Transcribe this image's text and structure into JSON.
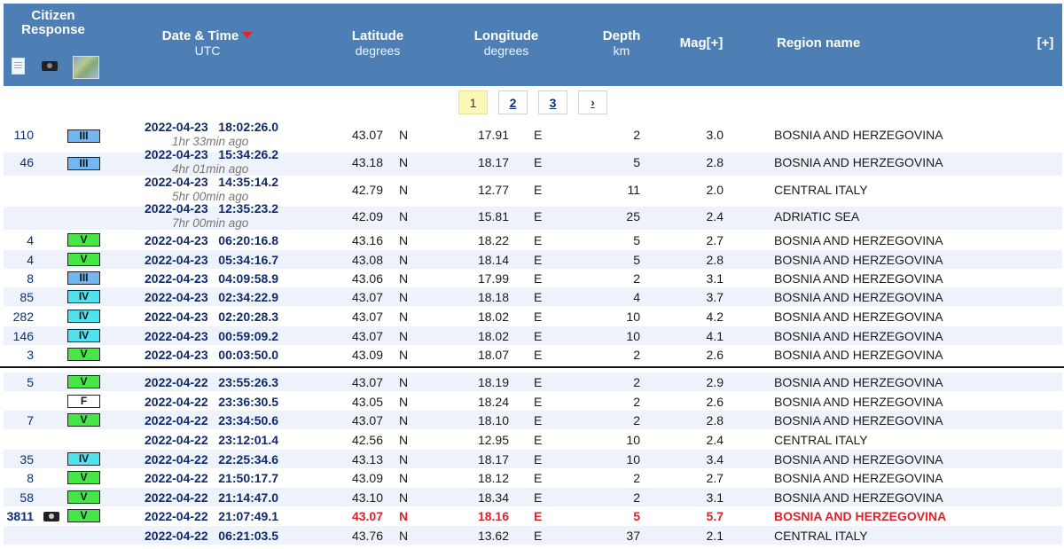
{
  "header": {
    "citizen_response": "Citizen Response",
    "datetime_label": "Date & Time",
    "datetime_unit": "UTC",
    "lat_label": "Latitude",
    "lat_unit": "degrees",
    "lon_label": "Longitude",
    "lon_unit": "degrees",
    "depth_label": "Depth",
    "depth_unit": "km",
    "mag_label": "Mag[+]",
    "region_label": "Region name",
    "expand_label": "[+]",
    "icons": [
      "document-icon",
      "camera-icon",
      "map-icon"
    ]
  },
  "pagination": {
    "pages": [
      "1",
      "2",
      "3"
    ],
    "current": "1",
    "next": "›"
  },
  "colors": {
    "header_bg": "#4e7fb4",
    "highlight": "#d9232d",
    "intensity_III": "#72b7ef",
    "intensity_IV": "#4fe3f0",
    "intensity_V": "#46e646"
  },
  "rows": [
    {
      "count": "110",
      "intensity": "III",
      "date": "2022-04-23",
      "time": "18:02:26.0",
      "ago": "1hr 33min ago",
      "lat": "43.07",
      "ns": "N",
      "lon": "17.91",
      "ew": "E",
      "depth": "2",
      "mag": "3.0",
      "region": "BOSNIA AND HERZEGOVINA"
    },
    {
      "count": "46",
      "intensity": "III",
      "date": "2022-04-23",
      "time": "15:34:26.2",
      "ago": "4hr 01min ago",
      "lat": "43.18",
      "ns": "N",
      "lon": "18.17",
      "ew": "E",
      "depth": "5",
      "mag": "2.8",
      "region": "BOSNIA AND HERZEGOVINA"
    },
    {
      "count": "",
      "intensity": "",
      "date": "2022-04-23",
      "time": "14:35:14.2",
      "ago": "5hr 00min ago",
      "lat": "42.79",
      "ns": "N",
      "lon": "12.77",
      "ew": "E",
      "depth": "11",
      "mag": "2.0",
      "region": "CENTRAL ITALY"
    },
    {
      "count": "",
      "intensity": "",
      "date": "2022-04-23",
      "time": "12:35:23.2",
      "ago": "7hr 00min ago",
      "lat": "42.09",
      "ns": "N",
      "lon": "15.81",
      "ew": "E",
      "depth": "25",
      "mag": "2.4",
      "region": "ADRIATIC SEA"
    },
    {
      "count": "4",
      "intensity": "V",
      "date": "2022-04-23",
      "time": "06:20:16.8",
      "ago": "",
      "lat": "43.16",
      "ns": "N",
      "lon": "18.22",
      "ew": "E",
      "depth": "5",
      "mag": "2.7",
      "region": "BOSNIA AND HERZEGOVINA"
    },
    {
      "count": "4",
      "intensity": "V",
      "date": "2022-04-23",
      "time": "05:34:16.7",
      "ago": "",
      "lat": "43.08",
      "ns": "N",
      "lon": "18.14",
      "ew": "E",
      "depth": "5",
      "mag": "2.8",
      "region": "BOSNIA AND HERZEGOVINA"
    },
    {
      "count": "8",
      "intensity": "III",
      "date": "2022-04-23",
      "time": "04:09:58.9",
      "ago": "",
      "lat": "43.06",
      "ns": "N",
      "lon": "17.99",
      "ew": "E",
      "depth": "2",
      "mag": "3.1",
      "region": "BOSNIA AND HERZEGOVINA"
    },
    {
      "count": "85",
      "intensity": "IV",
      "date": "2022-04-23",
      "time": "02:34:22.9",
      "ago": "",
      "lat": "43.07",
      "ns": "N",
      "lon": "18.18",
      "ew": "E",
      "depth": "4",
      "mag": "3.7",
      "region": "BOSNIA AND HERZEGOVINA"
    },
    {
      "count": "282",
      "intensity": "IV",
      "date": "2022-04-23",
      "time": "02:20:28.3",
      "ago": "",
      "lat": "43.07",
      "ns": "N",
      "lon": "18.02",
      "ew": "E",
      "depth": "10",
      "mag": "4.2",
      "region": "BOSNIA AND HERZEGOVINA"
    },
    {
      "count": "146",
      "intensity": "IV",
      "date": "2022-04-23",
      "time": "00:59:09.2",
      "ago": "",
      "lat": "43.07",
      "ns": "N",
      "lon": "18.02",
      "ew": "E",
      "depth": "10",
      "mag": "4.1",
      "region": "BOSNIA AND HERZEGOVINA"
    },
    {
      "count": "3",
      "intensity": "V",
      "date": "2022-04-23",
      "time": "00:03:50.0",
      "ago": "",
      "lat": "43.09",
      "ns": "N",
      "lon": "18.07",
      "ew": "E",
      "depth": "2",
      "mag": "2.6",
      "region": "BOSNIA AND HERZEGOVINA"
    },
    {
      "count": "5",
      "intensity": "V",
      "date": "2022-04-22",
      "time": "23:55:26.3",
      "ago": "",
      "lat": "43.07",
      "ns": "N",
      "lon": "18.19",
      "ew": "E",
      "depth": "2",
      "mag": "2.9",
      "region": "BOSNIA AND HERZEGOVINA"
    },
    {
      "count": "",
      "intensity": "F",
      "date": "2022-04-22",
      "time": "23:36:30.5",
      "ago": "",
      "lat": "43.05",
      "ns": "N",
      "lon": "18.24",
      "ew": "E",
      "depth": "2",
      "mag": "2.6",
      "region": "BOSNIA AND HERZEGOVINA"
    },
    {
      "count": "7",
      "intensity": "V",
      "date": "2022-04-22",
      "time": "23:34:50.6",
      "ago": "",
      "lat": "43.07",
      "ns": "N",
      "lon": "18.10",
      "ew": "E",
      "depth": "2",
      "mag": "2.8",
      "region": "BOSNIA AND HERZEGOVINA"
    },
    {
      "count": "",
      "intensity": "",
      "date": "2022-04-22",
      "time": "23:12:01.4",
      "ago": "",
      "lat": "42.56",
      "ns": "N",
      "lon": "12.95",
      "ew": "E",
      "depth": "10",
      "mag": "2.4",
      "region": "CENTRAL ITALY"
    },
    {
      "count": "35",
      "intensity": "IV",
      "date": "2022-04-22",
      "time": "22:25:34.6",
      "ago": "",
      "lat": "43.13",
      "ns": "N",
      "lon": "18.17",
      "ew": "E",
      "depth": "10",
      "mag": "3.4",
      "region": "BOSNIA AND HERZEGOVINA"
    },
    {
      "count": "8",
      "intensity": "V",
      "date": "2022-04-22",
      "time": "21:50:17.7",
      "ago": "",
      "lat": "43.09",
      "ns": "N",
      "lon": "18.12",
      "ew": "E",
      "depth": "2",
      "mag": "2.7",
      "region": "BOSNIA AND HERZEGOVINA"
    },
    {
      "count": "58",
      "intensity": "V",
      "date": "2022-04-22",
      "time": "21:14:47.0",
      "ago": "",
      "lat": "43.10",
      "ns": "N",
      "lon": "18.34",
      "ew": "E",
      "depth": "2",
      "mag": "3.1",
      "region": "BOSNIA AND HERZEGOVINA"
    },
    {
      "count": "3811",
      "intensity": "V",
      "photo": "photo-icon",
      "date": "2022-04-22",
      "time": "21:07:49.1",
      "ago": "",
      "lat": "43.07",
      "ns": "N",
      "lon": "18.16",
      "ew": "E",
      "depth": "5",
      "mag": "5.7",
      "region": "BOSNIA AND HERZEGOVINA",
      "highlight": true
    },
    {
      "count": "",
      "intensity": "",
      "date": "2022-04-22",
      "time": "06:21:03.5",
      "ago": "",
      "lat": "43.76",
      "ns": "N",
      "lon": "13.62",
      "ew": "E",
      "depth": "37",
      "mag": "2.1",
      "region": "CENTRAL ITALY"
    }
  ]
}
